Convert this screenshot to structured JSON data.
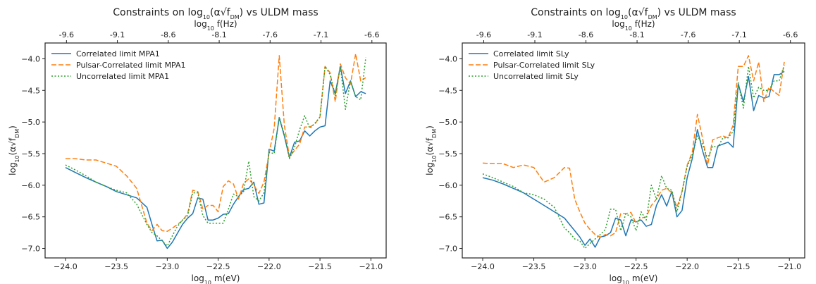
{
  "charts": [
    {
      "type": "line",
      "title_prefix": "Constraints on log",
      "title_sub": "10",
      "title_expr": "(α√f",
      "title_expr_sub": "DM",
      "title_suffix": ") vs ULDM mass",
      "xlabel_prefix": "log",
      "xlabel_sub": "10",
      "xlabel_suffix": " m(eV)",
      "ylabel_prefix": "log",
      "ylabel_sub": "10",
      "ylabel_expr": "(α√f",
      "ylabel_expr_sub": "DM",
      "ylabel_suffix": ")",
      "top_xlabel_prefix": "log",
      "top_xlabel_sub": "10",
      "top_xlabel_suffix": " f(Hz)",
      "xlim": [
        -24.2,
        -20.85
      ],
      "ylim": [
        -7.15,
        -3.75
      ],
      "xticks": [
        -24.0,
        -23.5,
        -23.0,
        -22.5,
        -22.0,
        -21.5,
        -21.0
      ],
      "xtick_labels": [
        "−24.0",
        "−23.5",
        "−23.0",
        "−22.5",
        "−22.0",
        "−21.5",
        "−21.0"
      ],
      "yticks": [
        -7.0,
        -6.5,
        -6.0,
        -5.5,
        -5.0,
        -4.5,
        -4.0
      ],
      "ytick_labels": [
        "−7.0",
        "−6.5",
        "−6.0",
        "−5.5",
        "−5.0",
        "−4.5",
        "−4.0"
      ],
      "top_xticks": [
        -23.99,
        -23.49,
        -22.99,
        -22.49,
        -21.99,
        -21.49,
        -20.99
      ],
      "top_xtick_labels": [
        "-9.6",
        "-9.1",
        "-8.6",
        "-8.1",
        "-7.6",
        "-7.1",
        "-6.6"
      ],
      "legend_position": "top-left",
      "grid": false,
      "series": [
        {
          "name": "Correlated limit MPA1",
          "color": "#1f77b4",
          "style": "solid",
          "x": [
            -24.0,
            -23.9,
            -23.8,
            -23.7,
            -23.6,
            -23.5,
            -23.4,
            -23.3,
            -23.2,
            -23.15,
            -23.1,
            -23.05,
            -23.0,
            -22.95,
            -22.9,
            -22.85,
            -22.8,
            -22.75,
            -22.7,
            -22.65,
            -22.6,
            -22.55,
            -22.5,
            -22.45,
            -22.4,
            -22.35,
            -22.3,
            -22.25,
            -22.2,
            -22.15,
            -22.1,
            -22.05,
            -22.0,
            -21.95,
            -21.9,
            -21.85,
            -21.8,
            -21.75,
            -21.7,
            -21.65,
            -21.6,
            -21.55,
            -21.5,
            -21.45,
            -21.4,
            -21.35,
            -21.3,
            -21.25,
            -21.2,
            -21.15,
            -21.1,
            -21.05
          ],
          "y": [
            -5.72,
            -5.8,
            -5.88,
            -5.95,
            -6.02,
            -6.1,
            -6.15,
            -6.2,
            -6.35,
            -6.62,
            -6.88,
            -6.87,
            -7.0,
            -6.9,
            -6.76,
            -6.62,
            -6.52,
            -6.45,
            -6.2,
            -6.22,
            -6.55,
            -6.55,
            -6.52,
            -6.46,
            -6.45,
            -6.3,
            -6.18,
            -6.07,
            -6.05,
            -5.95,
            -6.3,
            -6.28,
            -5.43,
            -5.46,
            -4.93,
            -5.22,
            -5.56,
            -5.32,
            -5.3,
            -5.14,
            -5.22,
            -5.14,
            -5.08,
            -5.06,
            -4.35,
            -4.55,
            -4.12,
            -4.55,
            -4.35,
            -4.6,
            -4.52,
            -4.55
          ]
        },
        {
          "name": "Pulsar-Correlated limit MPA1",
          "color": "#ff7f0e",
          "style": "dashed",
          "x": [
            -24.0,
            -23.9,
            -23.8,
            -23.7,
            -23.6,
            -23.5,
            -23.4,
            -23.3,
            -23.2,
            -23.15,
            -23.1,
            -23.05,
            -23.0,
            -22.95,
            -22.9,
            -22.85,
            -22.8,
            -22.75,
            -22.7,
            -22.65,
            -22.6,
            -22.55,
            -22.5,
            -22.45,
            -22.4,
            -22.35,
            -22.3,
            -22.25,
            -22.2,
            -22.15,
            -22.1,
            -22.05,
            -22.0,
            -21.95,
            -21.9,
            -21.85,
            -21.8,
            -21.75,
            -21.7,
            -21.65,
            -21.6,
            -21.55,
            -21.5,
            -21.45,
            -21.4,
            -21.35,
            -21.3,
            -21.25,
            -21.2,
            -21.15,
            -21.1,
            -21.05
          ],
          "y": [
            -5.58,
            -5.58,
            -5.6,
            -5.6,
            -5.65,
            -5.7,
            -5.85,
            -6.05,
            -6.6,
            -6.72,
            -6.62,
            -6.72,
            -6.73,
            -6.68,
            -6.62,
            -6.56,
            -6.45,
            -6.08,
            -6.1,
            -6.38,
            -6.32,
            -6.32,
            -6.42,
            -6.02,
            -5.93,
            -5.98,
            -6.22,
            -5.97,
            -5.9,
            -6.0,
            -6.13,
            -5.95,
            -5.49,
            -5.1,
            -3.95,
            -5.05,
            -5.55,
            -5.45,
            -5.35,
            -5.08,
            -5.08,
            -5.03,
            -4.92,
            -4.12,
            -4.22,
            -4.68,
            -4.08,
            -4.3,
            -4.4,
            -3.92,
            -4.35,
            -4.3
          ]
        },
        {
          "name": "Uncorrelated limit MPA1",
          "color": "#2ca02c",
          "style": "dotted",
          "x": [
            -24.0,
            -23.9,
            -23.8,
            -23.7,
            -23.6,
            -23.5,
            -23.4,
            -23.3,
            -23.2,
            -23.15,
            -23.1,
            -23.05,
            -23.0,
            -22.95,
            -22.9,
            -22.85,
            -22.8,
            -22.75,
            -22.7,
            -22.65,
            -22.6,
            -22.55,
            -22.5,
            -22.45,
            -22.4,
            -22.35,
            -22.3,
            -22.25,
            -22.2,
            -22.15,
            -22.1,
            -22.05,
            -22.0,
            -21.95,
            -21.9,
            -21.85,
            -21.8,
            -21.75,
            -21.7,
            -21.65,
            -21.6,
            -21.55,
            -21.5,
            -21.45,
            -21.4,
            -21.35,
            -21.3,
            -21.25,
            -21.2,
            -21.15,
            -21.1,
            -21.05
          ],
          "y": [
            -5.68,
            -5.76,
            -5.85,
            -5.95,
            -6.02,
            -6.08,
            -6.12,
            -6.3,
            -6.62,
            -6.75,
            -6.8,
            -6.88,
            -6.96,
            -6.8,
            -6.65,
            -6.55,
            -6.48,
            -6.12,
            -6.12,
            -6.48,
            -6.6,
            -6.6,
            -6.6,
            -6.6,
            -6.38,
            -6.14,
            -6.18,
            -6.1,
            -5.62,
            -6.18,
            -6.25,
            -6.12,
            -5.48,
            -5.5,
            -4.92,
            -5.2,
            -5.58,
            -5.4,
            -5.12,
            -4.9,
            -5.1,
            -5.02,
            -4.92,
            -4.12,
            -4.25,
            -4.58,
            -4.12,
            -4.8,
            -4.35,
            -4.6,
            -4.65,
            -3.98
          ]
        }
      ]
    },
    {
      "type": "line",
      "title_prefix": "Constraints on log",
      "title_sub": "10",
      "title_expr": "(α√f",
      "title_expr_sub": "DM",
      "title_suffix": ") vs ULDM mass",
      "xlabel_prefix": "log",
      "xlabel_sub": "10",
      "xlabel_suffix": " m(eV)",
      "ylabel_prefix": "log",
      "ylabel_sub": "10",
      "ylabel_expr": "(α√f",
      "ylabel_expr_sub": "DM",
      "ylabel_suffix": ")",
      "top_xlabel_prefix": "log",
      "top_xlabel_sub": "10",
      "top_xlabel_suffix": " f(Hz)",
      "xlim": [
        -24.2,
        -20.85
      ],
      "ylim": [
        -7.15,
        -3.75
      ],
      "xticks": [
        -24.0,
        -23.5,
        -23.0,
        -22.5,
        -22.0,
        -21.5,
        -21.0
      ],
      "xtick_labels": [
        "−24.0",
        "−23.5",
        "−23.0",
        "−22.5",
        "−22.0",
        "−21.5",
        "−21.0"
      ],
      "yticks": [
        -7.0,
        -6.5,
        -6.0,
        -5.5,
        -5.0,
        -4.5,
        -4.0
      ],
      "ytick_labels": [
        "−7.0",
        "−6.5",
        "−6.0",
        "−5.5",
        "−5.0",
        "−4.5",
        "−4.0"
      ],
      "top_xticks": [
        -23.99,
        -23.49,
        -22.99,
        -22.49,
        -21.99,
        -21.49,
        -20.99
      ],
      "top_xtick_labels": [
        "-9.6",
        "-9.1",
        "-8.6",
        "-8.1",
        "-7.6",
        "-7.1",
        "-6.6"
      ],
      "legend_position": "top-left",
      "grid": false,
      "series": [
        {
          "name": "Correlated limit SLy",
          "color": "#1f77b4",
          "style": "solid",
          "x": [
            -24.0,
            -23.9,
            -23.8,
            -23.7,
            -23.6,
            -23.5,
            -23.4,
            -23.3,
            -23.2,
            -23.15,
            -23.1,
            -23.05,
            -23.0,
            -22.95,
            -22.9,
            -22.85,
            -22.8,
            -22.75,
            -22.7,
            -22.65,
            -22.6,
            -22.55,
            -22.5,
            -22.45,
            -22.4,
            -22.35,
            -22.3,
            -22.25,
            -22.2,
            -22.15,
            -22.1,
            -22.05,
            -22.0,
            -21.95,
            -21.9,
            -21.85,
            -21.8,
            -21.75,
            -21.7,
            -21.65,
            -21.6,
            -21.55,
            -21.5,
            -21.45,
            -21.4,
            -21.35,
            -21.3,
            -21.25,
            -21.2,
            -21.15,
            -21.1,
            -21.05
          ],
          "y": [
            -5.88,
            -5.92,
            -5.98,
            -6.05,
            -6.12,
            -6.22,
            -6.32,
            -6.42,
            -6.52,
            -6.62,
            -6.72,
            -6.82,
            -6.95,
            -6.85,
            -6.98,
            -6.82,
            -6.8,
            -6.75,
            -6.52,
            -6.55,
            -6.8,
            -6.55,
            -6.58,
            -6.55,
            -6.65,
            -6.62,
            -6.32,
            -6.15,
            -6.33,
            -6.1,
            -6.5,
            -6.4,
            -5.88,
            -5.58,
            -5.12,
            -5.45,
            -5.72,
            -5.72,
            -5.38,
            -5.35,
            -5.32,
            -5.4,
            -4.4,
            -4.68,
            -4.28,
            -4.82,
            -4.58,
            -4.62,
            -4.6,
            -4.25,
            -4.25,
            -4.2
          ]
        },
        {
          "name": "Pulsar-Correlated limit SLy",
          "color": "#ff7f0e",
          "style": "dashed",
          "x": [
            -24.0,
            -23.9,
            -23.8,
            -23.7,
            -23.6,
            -23.5,
            -23.4,
            -23.3,
            -23.2,
            -23.15,
            -23.1,
            -23.05,
            -23.0,
            -22.95,
            -22.9,
            -22.85,
            -22.8,
            -22.75,
            -22.7,
            -22.65,
            -22.6,
            -22.55,
            -22.5,
            -22.45,
            -22.4,
            -22.35,
            -22.3,
            -22.25,
            -22.2,
            -22.15,
            -22.1,
            -22.05,
            -22.0,
            -21.95,
            -21.9,
            -21.85,
            -21.8,
            -21.75,
            -21.7,
            -21.65,
            -21.6,
            -21.55,
            -21.5,
            -21.45,
            -21.4,
            -21.35,
            -21.3,
            -21.25,
            -21.2,
            -21.15,
            -21.1,
            -21.05
          ],
          "y": [
            -5.65,
            -5.66,
            -5.66,
            -5.72,
            -5.68,
            -5.72,
            -5.95,
            -5.88,
            -5.72,
            -5.73,
            -6.22,
            -6.42,
            -6.6,
            -6.7,
            -6.78,
            -6.82,
            -6.78,
            -6.8,
            -6.75,
            -6.45,
            -6.45,
            -6.43,
            -6.6,
            -6.52,
            -6.5,
            -6.32,
            -6.22,
            -6.08,
            -6.05,
            -6.12,
            -6.35,
            -6.1,
            -5.68,
            -5.48,
            -4.88,
            -5.25,
            -5.68,
            -5.28,
            -5.25,
            -5.22,
            -5.25,
            -5.05,
            -4.12,
            -4.12,
            -3.95,
            -4.35,
            -4.05,
            -4.68,
            -4.45,
            -4.52,
            -4.58,
            -4.05
          ]
        },
        {
          "name": "Uncorrelated limit SLy",
          "color": "#2ca02c",
          "style": "dotted",
          "x": [
            -24.0,
            -23.9,
            -23.8,
            -23.7,
            -23.6,
            -23.5,
            -23.4,
            -23.3,
            -23.2,
            -23.15,
            -23.1,
            -23.05,
            -23.0,
            -22.95,
            -22.9,
            -22.85,
            -22.8,
            -22.75,
            -22.7,
            -22.65,
            -22.6,
            -22.55,
            -22.5,
            -22.45,
            -22.4,
            -22.35,
            -22.3,
            -22.25,
            -22.2,
            -22.15,
            -22.1,
            -22.05,
            -22.0,
            -21.95,
            -21.9,
            -21.85,
            -21.8,
            -21.75,
            -21.7,
            -21.65,
            -21.6,
            -21.55,
            -21.5,
            -21.45,
            -21.4,
            -21.35,
            -21.3,
            -21.25,
            -21.2,
            -21.15,
            -21.1,
            -21.05
          ],
          "y": [
            -5.82,
            -5.88,
            -5.95,
            -6.02,
            -6.12,
            -6.15,
            -6.22,
            -6.35,
            -6.68,
            -6.75,
            -6.85,
            -6.88,
            -7.0,
            -6.92,
            -6.85,
            -6.78,
            -6.7,
            -6.38,
            -6.38,
            -6.72,
            -6.45,
            -6.5,
            -6.72,
            -6.42,
            -6.55,
            -6.0,
            -6.22,
            -5.85,
            -6.05,
            -6.08,
            -6.42,
            -6.1,
            -5.7,
            -5.52,
            -5.22,
            -5.35,
            -5.58,
            -5.38,
            -5.4,
            -5.25,
            -5.25,
            -5.15,
            -4.38,
            -4.78,
            -4.12,
            -4.62,
            -4.45,
            -4.5,
            -4.5,
            -4.35,
            -4.35,
            -4.1
          ]
        }
      ]
    }
  ]
}
